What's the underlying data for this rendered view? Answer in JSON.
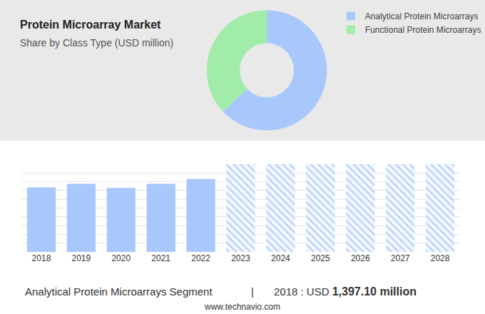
{
  "chart_data": [
    {
      "type": "pie",
      "title": "Protein Microarray Market",
      "subtitle": "Share by Class Type (USD million)",
      "categories": [
        "Analytical Protein Microarrays",
        "Functional Protein Microarrays"
      ],
      "values": [
        63,
        37
      ],
      "colors": [
        "#a8c8fb",
        "#a0eca8"
      ],
      "legend": "upper right"
    },
    {
      "type": "bar",
      "categories": [
        "2018",
        "2019",
        "2020",
        "2021",
        "2022",
        "2023",
        "2024",
        "2025",
        "2026",
        "2027",
        "2028"
      ],
      "values": [
        1397.1,
        1475,
        1385,
        1475,
        1580,
        null,
        null,
        null,
        null,
        null,
        null
      ],
      "color": "#a8c8fb",
      "ylim": [
        0,
        1900
      ],
      "yticks": [
        0,
        190,
        380,
        570,
        760,
        950,
        1140,
        1330,
        1520,
        1710,
        1900
      ],
      "grid": true,
      "tick_labels": "x",
      "footer": {
        "segment": "Analytical Protein Microarrays Segment",
        "separator": "|",
        "label": "2018 : USD",
        "value": "1,397.10 million"
      },
      "source": "www.technavio.com"
    }
  ]
}
